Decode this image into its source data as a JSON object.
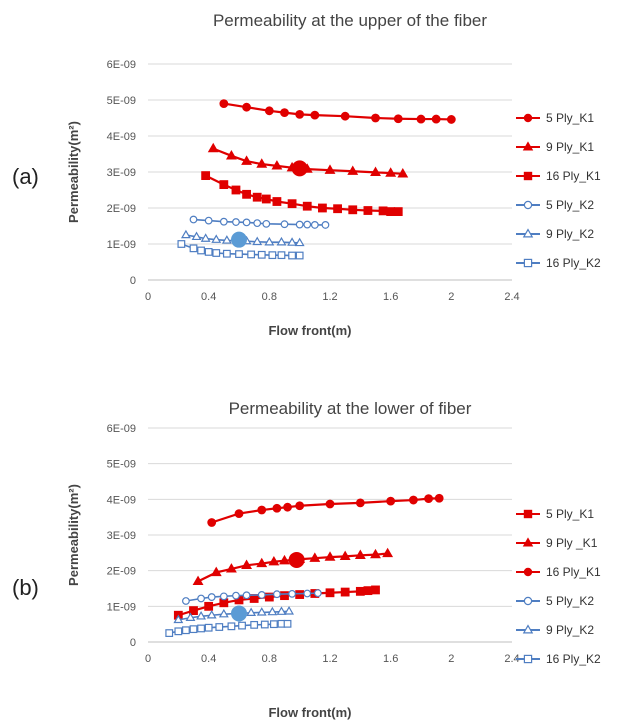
{
  "colors": {
    "red": "#e00000",
    "blue": "#4f7ec2",
    "gridline": "#d9d9d9",
    "highlight_red": "#e00000",
    "highlight_blue": "#5b9bd5"
  },
  "chart_data": [
    {
      "type": "line",
      "panel_label": "(a)",
      "title": "Permeability  at the upper of the fiber",
      "xlabel": "Flow front(m)",
      "ylabel": "Permeability(m²)",
      "xlim": [
        0,
        2.4
      ],
      "ylim": [
        0,
        6e-09
      ],
      "x_ticks": [
        "0",
        "0.4",
        "0.8",
        "1.2",
        "1.6",
        "2",
        "2.4"
      ],
      "y_ticks": [
        "0",
        "1E-09",
        "2E-09",
        "3E-09",
        "4E-09",
        "5E-09",
        "6E-09"
      ],
      "grid": "horizontal",
      "legend_position": "right",
      "series": [
        {
          "name": "5 Ply_K1",
          "color": "red",
          "marker": "circle",
          "filled": true,
          "x": [
            0.5,
            0.65,
            0.8,
            0.9,
            1.0,
            1.1,
            1.3,
            1.5,
            1.65,
            1.8,
            1.9,
            2.0
          ],
          "y": [
            4.9e-09,
            4.8e-09,
            4.7e-09,
            4.65e-09,
            4.6e-09,
            4.58e-09,
            4.55e-09,
            4.5e-09,
            4.48e-09,
            4.47e-09,
            4.47e-09,
            4.46e-09
          ]
        },
        {
          "name": "9 Ply_K1",
          "color": "red",
          "marker": "triangle",
          "filled": true,
          "x": [
            0.43,
            0.55,
            0.65,
            0.75,
            0.85,
            0.95,
            1.05,
            1.2,
            1.35,
            1.5,
            1.6,
            1.68
          ],
          "y": [
            3.65e-09,
            3.45e-09,
            3.3e-09,
            3.22e-09,
            3.17e-09,
            3.12e-09,
            3.08e-09,
            3.05e-09,
            3.02e-09,
            2.99e-09,
            2.97e-09,
            2.95e-09
          ]
        },
        {
          "name": "16 Ply_K1",
          "color": "red",
          "marker": "square",
          "filled": true,
          "x": [
            0.38,
            0.5,
            0.58,
            0.65,
            0.72,
            0.78,
            0.85,
            0.95,
            1.05,
            1.15,
            1.25,
            1.35,
            1.45,
            1.55,
            1.6,
            1.65
          ],
          "y": [
            2.9e-09,
            2.65e-09,
            2.5e-09,
            2.38e-09,
            2.3e-09,
            2.25e-09,
            2.18e-09,
            2.12e-09,
            2.05e-09,
            2e-09,
            1.98e-09,
            1.95e-09,
            1.93e-09,
            1.92e-09,
            1.9e-09,
            1.9e-09
          ]
        },
        {
          "name": "5 Ply_K2",
          "color": "blue",
          "marker": "circle",
          "filled": false,
          "x": [
            0.3,
            0.4,
            0.5,
            0.58,
            0.65,
            0.72,
            0.78,
            0.9,
            1.0,
            1.05,
            1.1,
            1.17
          ],
          "y": [
            1.68e-09,
            1.65e-09,
            1.62e-09,
            1.61e-09,
            1.6e-09,
            1.58e-09,
            1.56e-09,
            1.55e-09,
            1.54e-09,
            1.54e-09,
            1.53e-09,
            1.53e-09
          ]
        },
        {
          "name": "9 Ply_K2",
          "color": "blue",
          "marker": "triangle",
          "filled": false,
          "x": [
            0.25,
            0.32,
            0.38,
            0.45,
            0.52,
            0.65,
            0.72,
            0.8,
            0.88,
            0.95,
            1.0
          ],
          "y": [
            1.25e-09,
            1.2e-09,
            1.15e-09,
            1.12e-09,
            1.1e-09,
            1.08e-09,
            1.06e-09,
            1.05e-09,
            1.05e-09,
            1.04e-09,
            1.03e-09
          ]
        },
        {
          "name": "16 Ply_K2",
          "color": "blue",
          "marker": "square",
          "filled": false,
          "x": [
            0.22,
            0.3,
            0.35,
            0.4,
            0.45,
            0.52,
            0.6,
            0.68,
            0.75,
            0.82,
            0.88,
            0.95,
            1.0
          ],
          "y": [
            1e-09,
            8.8e-10,
            8.2e-10,
            7.8e-10,
            7.5e-10,
            7.3e-10,
            7.2e-10,
            7.1e-10,
            7e-10,
            6.9e-10,
            6.9e-10,
            6.8e-10,
            6.8e-10
          ]
        }
      ],
      "highlights": [
        {
          "x": 1.0,
          "y": 3.1e-09,
          "color": "highlight_red"
        },
        {
          "x": 0.6,
          "y": 1.12e-09,
          "color": "highlight_blue"
        }
      ]
    },
    {
      "type": "line",
      "panel_label": "(b)",
      "title": "Permeability  at the lower of fiber",
      "xlabel": "Flow front(m)",
      "ylabel": "Permeability(m²)",
      "xlim": [
        0,
        2.4
      ],
      "ylim": [
        0,
        6e-09
      ],
      "x_ticks": [
        "0",
        "0.4",
        "0.8",
        "1.2",
        "1.6",
        "2",
        "2.4"
      ],
      "y_ticks": [
        "0",
        "1E-09",
        "2E-09",
        "3E-09",
        "4E-09",
        "5E-09",
        "6E-09"
      ],
      "grid": "horizontal",
      "legend_position": "right",
      "series": [
        {
          "name": "5 Ply_K1",
          "color": "red",
          "marker": "square",
          "filled": true,
          "x": [
            0.2,
            0.3,
            0.4,
            0.5,
            0.6,
            0.7,
            0.8,
            0.9,
            1.0,
            1.1,
            1.2,
            1.3,
            1.4,
            1.45,
            1.5
          ],
          "y": [
            7.5e-10,
            8.8e-10,
            1e-09,
            1.1e-09,
            1.18e-09,
            1.22e-09,
            1.26e-09,
            1.3e-09,
            1.33e-09,
            1.36e-09,
            1.38e-09,
            1.4e-09,
            1.42e-09,
            1.44e-09,
            1.46e-09
          ]
        },
        {
          "name": "9 Ply _K1",
          "color": "red",
          "marker": "triangle",
          "filled": true,
          "x": [
            0.33,
            0.45,
            0.55,
            0.65,
            0.75,
            0.83,
            0.9,
            1.0,
            1.1,
            1.2,
            1.3,
            1.4,
            1.5,
            1.58
          ],
          "y": [
            1.7e-09,
            1.95e-09,
            2.05e-09,
            2.15e-09,
            2.2e-09,
            2.25e-09,
            2.28e-09,
            2.32e-09,
            2.35e-09,
            2.38e-09,
            2.4e-09,
            2.43e-09,
            2.45e-09,
            2.48e-09
          ]
        },
        {
          "name": "16 Ply_K1",
          "color": "red",
          "marker": "circle",
          "filled": true,
          "x": [
            0.42,
            0.6,
            0.75,
            0.85,
            0.92,
            1.0,
            1.2,
            1.4,
            1.6,
            1.75,
            1.85,
            1.92
          ],
          "y": [
            3.35e-09,
            3.6e-09,
            3.7e-09,
            3.75e-09,
            3.78e-09,
            3.82e-09,
            3.87e-09,
            3.9e-09,
            3.95e-09,
            3.98e-09,
            4.02e-09,
            4.03e-09
          ]
        },
        {
          "name": "5 Ply_K2",
          "color": "blue",
          "marker": "circle",
          "filled": false,
          "x": [
            0.25,
            0.35,
            0.42,
            0.5,
            0.58,
            0.65,
            0.75,
            0.85,
            0.95,
            1.05,
            1.12
          ],
          "y": [
            1.15e-09,
            1.22e-09,
            1.26e-09,
            1.28e-09,
            1.3e-09,
            1.31e-09,
            1.32e-09,
            1.34e-09,
            1.35e-09,
            1.36e-09,
            1.37e-09
          ]
        },
        {
          "name": "9 Ply_K2",
          "color": "blue",
          "marker": "triangle",
          "filled": false,
          "x": [
            0.2,
            0.28,
            0.35,
            0.42,
            0.5,
            0.6,
            0.68,
            0.75,
            0.82,
            0.88,
            0.93
          ],
          "y": [
            6.2e-10,
            6.8e-10,
            7.2e-10,
            7.5e-10,
            7.8e-10,
            8e-10,
            8.2e-10,
            8.3e-10,
            8.4e-10,
            8.5e-10,
            8.6e-10
          ]
        },
        {
          "name": "16 Ply_K2",
          "color": "blue",
          "marker": "square",
          "filled": false,
          "x": [
            0.14,
            0.2,
            0.25,
            0.3,
            0.35,
            0.4,
            0.47,
            0.55,
            0.62,
            0.7,
            0.77,
            0.83,
            0.88,
            0.92
          ],
          "y": [
            2.5e-10,
            3e-10,
            3.3e-10,
            3.6e-10,
            3.8e-10,
            4e-10,
            4.2e-10,
            4.4e-10,
            4.6e-10,
            4.8e-10,
            4.9e-10,
            5e-10,
            5.1e-10,
            5.1e-10
          ]
        }
      ],
      "highlights": [
        {
          "x": 0.98,
          "y": 2.3e-09,
          "color": "highlight_red"
        },
        {
          "x": 0.6,
          "y": 8e-10,
          "color": "highlight_blue"
        }
      ]
    }
  ]
}
